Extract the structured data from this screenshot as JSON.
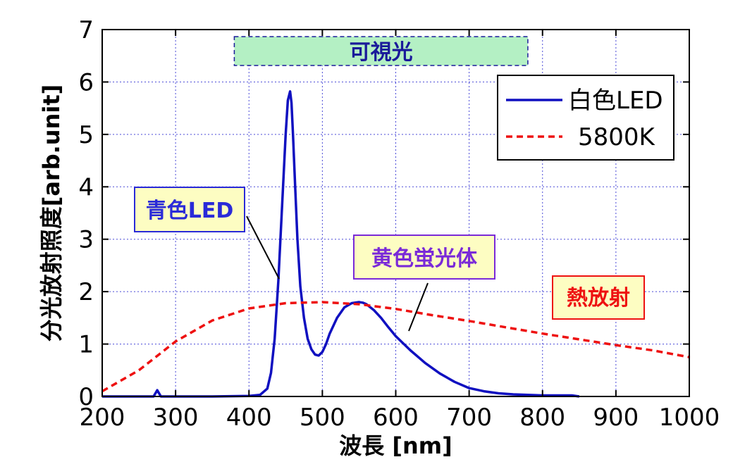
{
  "chart_data": {
    "type": "line",
    "xlabel": "波長 [nm]",
    "ylabel": "分光放射照度[arb.unit]",
    "xlim": [
      200,
      1000
    ],
    "ylim": [
      0,
      7
    ],
    "xticks": [
      "200",
      "300",
      "400",
      "500",
      "600",
      "700",
      "800",
      "900",
      "1000"
    ],
    "yticks": [
      "0",
      "1",
      "2",
      "3",
      "4",
      "5",
      "6",
      "7"
    ],
    "grid": true,
    "legend_position": "top-right",
    "series": [
      {
        "name": "白色LED",
        "color": "#1010c0",
        "style": "solid",
        "x": [
          200,
          270,
          275,
          280,
          300,
          350,
          400,
          415,
          425,
          430,
          435,
          440,
          445,
          450,
          453,
          456,
          458,
          460,
          463,
          466,
          470,
          475,
          480,
          485,
          490,
          495,
          500,
          505,
          510,
          520,
          530,
          540,
          550,
          555,
          560,
          570,
          580,
          590,
          600,
          620,
          640,
          660,
          680,
          700,
          720,
          740,
          760,
          780,
          800,
          820,
          840,
          850
        ],
        "y": [
          0.0,
          0.0,
          0.12,
          0.0,
          0.0,
          0.0,
          0.01,
          0.03,
          0.15,
          0.45,
          1.1,
          2.2,
          3.6,
          5.0,
          5.65,
          5.82,
          5.6,
          5.0,
          4.0,
          3.0,
          2.1,
          1.5,
          1.1,
          0.9,
          0.8,
          0.78,
          0.85,
          1.0,
          1.2,
          1.5,
          1.7,
          1.78,
          1.8,
          1.79,
          1.76,
          1.65,
          1.5,
          1.32,
          1.15,
          0.88,
          0.64,
          0.44,
          0.28,
          0.16,
          0.1,
          0.06,
          0.04,
          0.03,
          0.02,
          0.02,
          0.02,
          0.0
        ]
      },
      {
        "name": "5800K",
        "color": "#ee1111",
        "style": "dashed",
        "x": [
          200,
          250,
          300,
          350,
          400,
          450,
          500,
          550,
          600,
          650,
          700,
          750,
          800,
          850,
          900,
          950,
          1000
        ],
        "y": [
          0.1,
          0.5,
          1.05,
          1.45,
          1.68,
          1.78,
          1.8,
          1.76,
          1.67,
          1.55,
          1.44,
          1.32,
          1.2,
          1.09,
          0.98,
          0.88,
          0.75
        ]
      }
    ],
    "annotations": {
      "visible_light": {
        "label": "可視光",
        "range": [
          380,
          780
        ]
      },
      "blue_led": "青色LED",
      "yellow_phosphor": "黄色蛍光体",
      "thermal": "熱放射"
    },
    "colors": {
      "axis": "#000000",
      "grid": "#4a4ad8",
      "visible_fill": "#b4f0c4",
      "visible_text": "#1a1a9a",
      "blue_led_text": "#2a2ad8",
      "yellow_box_fill": "#fdfdc2",
      "yellow_text": "#7a2ad8",
      "thermal_text": "#ee1111"
    }
  }
}
